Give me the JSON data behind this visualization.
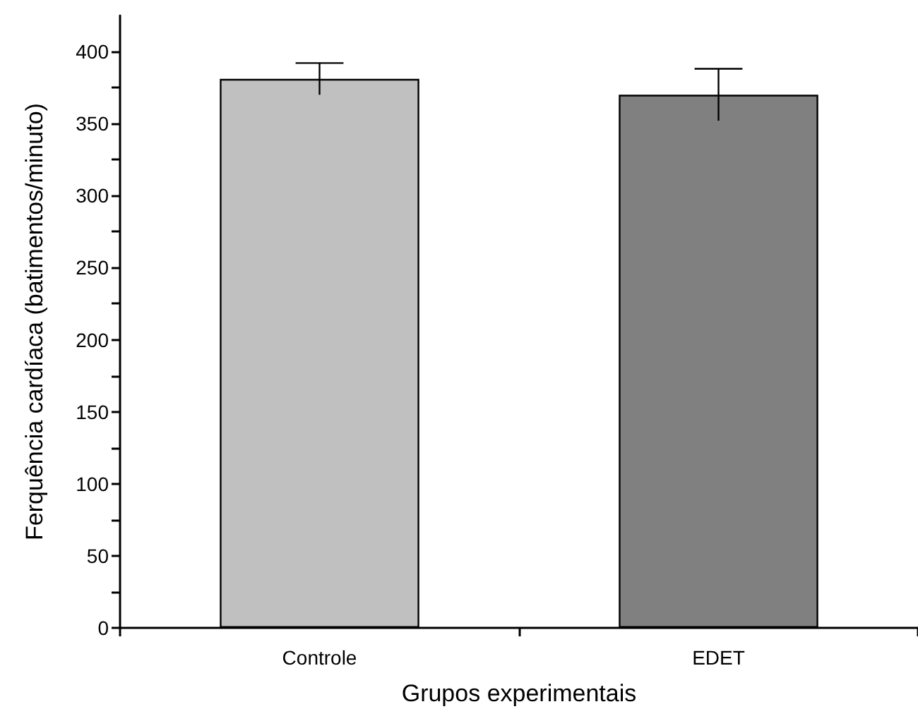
{
  "chart_data": {
    "type": "bar",
    "xlabel": "Grupos experimentais",
    "ylabel": "Ferquência cardíaca (batimentos/minuto)",
    "categories": [
      "Controle",
      "EDET"
    ],
    "values": [
      381,
      370
    ],
    "errors": [
      11,
      18
    ],
    "colors": [
      "#c0c0c0",
      "#808080"
    ],
    "ylim": [
      0,
      425
    ],
    "yticks": [
      0,
      {
        "value": 25,
        "label": null
      },
      50,
      {
        "value": 75,
        "label": null
      },
      100,
      {
        "value": 125,
        "label": null
      },
      150,
      {
        "value": 175,
        "label": null
      },
      200,
      {
        "value": 225,
        "label": null
      },
      250,
      {
        "value": 275,
        "label": null
      },
      300,
      {
        "value": 325,
        "label": null
      },
      350,
      {
        "value": 375,
        "label": null
      },
      400
    ],
    "grid": false
  }
}
